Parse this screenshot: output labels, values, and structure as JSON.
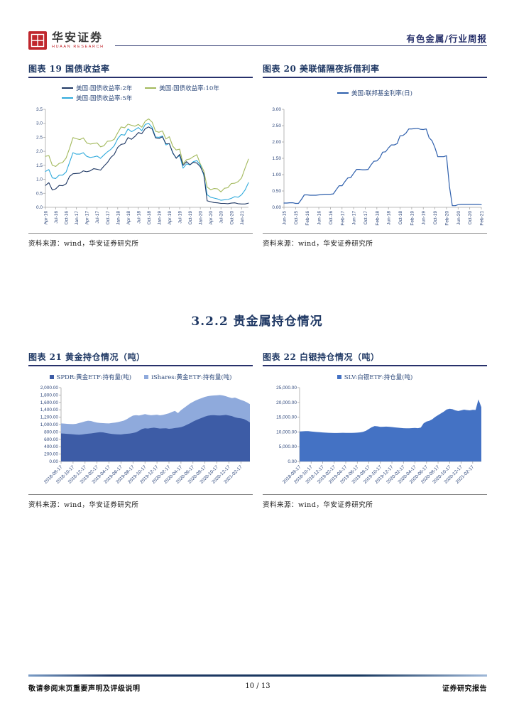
{
  "header": {
    "logo_cn": "华安证券",
    "logo_en": "HUAAN RESEARCH",
    "report_tag": "有色金属/行业周报"
  },
  "section": {
    "title": "3.2.2 贵金属持仓情况"
  },
  "footer": {
    "disclaimer": "敬请参阅末页重要声明及评级说明",
    "page": "10 / 13",
    "right": "证券研究报告"
  },
  "chart_data": [
    {
      "id": "c19",
      "label": "图表 19 国债收益率",
      "type": "line",
      "marker": "line",
      "source": "资料来源：wind，华安证券研究所",
      "ylim": [
        0,
        3.5
      ],
      "yticks": {
        "values": [
          0,
          0.5,
          1,
          1.5,
          2,
          2.5,
          3,
          3.5
        ],
        "labels": [
          "0.0",
          "0.5",
          "1.0",
          "1.5",
          "2.0",
          "2.5",
          "3.0",
          "3.5"
        ]
      },
      "xlabels": [
        "Apr-16",
        "Jul-16",
        "Oct-16",
        "Jan-17",
        "Apr-17",
        "Jul-17",
        "Oct-17",
        "Jan-18",
        "Apr-18",
        "Jul-18",
        "Oct-18",
        "Jan-19",
        "Apr-19",
        "Jul-19",
        "Oct-19",
        "Jan-20",
        "Apr-20",
        "Jul-20",
        "Oct-20",
        "Jan-21"
      ],
      "xstep": 3,
      "legend_rows": [
        [
          0,
          1
        ],
        [
          2
        ]
      ],
      "draw_order": [
        1,
        2,
        0
      ],
      "series": [
        {
          "name": "美国:国债收益率:2年",
          "color": "#1F3864",
          "values": [
            0.78,
            0.88,
            0.62,
            0.66,
            0.78,
            0.77,
            0.84,
            1.1,
            1.2,
            1.21,
            1.22,
            1.3,
            1.27,
            1.3,
            1.38,
            1.36,
            1.33,
            1.47,
            1.6,
            1.78,
            1.89,
            2.14,
            2.25,
            2.27,
            2.49,
            2.43,
            2.53,
            2.67,
            2.63,
            2.81,
            2.87,
            2.8,
            2.48,
            2.46,
            2.52,
            2.27,
            2.27,
            1.95,
            1.75,
            1.89,
            1.5,
            1.63,
            1.52,
            1.61,
            1.58,
            1.45,
            1.2,
            0.23,
            0.2,
            0.17,
            0.16,
            0.14,
            0.14,
            0.13,
            0.15,
            0.16,
            0.13,
            0.12,
            0.12,
            0.15
          ]
        },
        {
          "name": "美国:国债收益率:10年",
          "color": "#A3B95C",
          "values": [
            1.82,
            1.85,
            1.5,
            1.46,
            1.57,
            1.6,
            1.76,
            2.1,
            2.49,
            2.45,
            2.42,
            2.48,
            2.3,
            2.26,
            2.28,
            2.3,
            2.16,
            2.2,
            2.36,
            2.37,
            2.43,
            2.66,
            2.87,
            2.84,
            2.97,
            2.93,
            2.9,
            2.96,
            2.86,
            3.08,
            3.16,
            3.04,
            2.72,
            2.68,
            2.73,
            2.44,
            2.52,
            2.18,
            2.05,
            2.08,
            1.55,
            1.7,
            1.73,
            1.81,
            1.88,
            1.55,
            1.3,
            0.72,
            0.63,
            0.67,
            0.66,
            0.55,
            0.68,
            0.7,
            0.85,
            0.86,
            0.92,
            1.05,
            1.4,
            1.72
          ]
        },
        {
          "name": "美国:国债收益率:5年",
          "color": "#2FAADC",
          "values": [
            1.28,
            1.35,
            1.05,
            1.03,
            1.15,
            1.15,
            1.26,
            1.6,
            1.95,
            1.9,
            1.9,
            1.95,
            1.82,
            1.78,
            1.8,
            1.83,
            1.75,
            1.87,
            1.98,
            2.07,
            2.2,
            2.45,
            2.6,
            2.58,
            2.8,
            2.7,
            2.77,
            2.85,
            2.74,
            2.96,
            3.0,
            2.85,
            2.51,
            2.5,
            2.55,
            2.23,
            2.28,
            1.93,
            1.77,
            1.85,
            1.4,
            1.55,
            1.52,
            1.63,
            1.67,
            1.51,
            1.15,
            0.45,
            0.36,
            0.33,
            0.3,
            0.25,
            0.27,
            0.28,
            0.32,
            0.38,
            0.36,
            0.45,
            0.62,
            0.88
          ]
        }
      ]
    },
    {
      "id": "c20",
      "label": "图表 20 美联储隔夜拆借利率",
      "type": "line",
      "marker": "line",
      "source": "资料来源：wind，华安证券研究所",
      "ylim": [
        0,
        3
      ],
      "yticks": {
        "values": [
          0,
          0.5,
          1,
          1.5,
          2,
          2.5,
          3
        ],
        "labels": [
          "0.00",
          "0.50",
          "1.00",
          "1.50",
          "2.00",
          "2.50",
          "3.00"
        ]
      },
      "xlabels": [
        "Jun-15",
        "Oct-15",
        "Feb-16",
        "Jun-16",
        "Oct-16",
        "Feb-17",
        "Jun-17",
        "Oct-17",
        "Feb-18",
        "Jun-18",
        "Oct-18",
        "Feb-19",
        "Jun-19",
        "Oct-19",
        "Feb-20",
        "Jun-20",
        "Oct-20",
        "Feb-21"
      ],
      "xstep": 4,
      "legend_rows": [
        [
          0
        ]
      ],
      "series": [
        {
          "name": "美国:联邦基金利率(日)",
          "color": "#2E5FAC",
          "values": [
            0.13,
            0.13,
            0.14,
            0.14,
            0.12,
            0.12,
            0.24,
            0.38,
            0.38,
            0.37,
            0.37,
            0.37,
            0.38,
            0.39,
            0.4,
            0.4,
            0.4,
            0.41,
            0.54,
            0.66,
            0.66,
            0.79,
            0.9,
            0.91,
            1.04,
            1.16,
            1.16,
            1.15,
            1.15,
            1.16,
            1.3,
            1.41,
            1.42,
            1.51,
            1.69,
            1.7,
            1.82,
            1.91,
            1.91,
            1.95,
            2.19,
            2.2,
            2.27,
            2.4,
            2.4,
            2.41,
            2.42,
            2.39,
            2.38,
            2.4,
            2.13,
            2.04,
            1.83,
            1.55,
            1.55,
            1.55,
            1.58,
            0.65,
            0.05,
            0.05,
            0.08,
            0.09,
            0.09,
            0.09,
            0.09,
            0.09,
            0.09,
            0.09,
            0.08
          ]
        }
      ]
    },
    {
      "id": "c21",
      "label": "图表 21 黄金持仓情况（吨）",
      "type": "stacked",
      "marker": "square",
      "source": "资料来源：wind，华安证券研究所",
      "ylim": [
        0,
        2000
      ],
      "yticks": {
        "values": [
          0,
          200,
          400,
          600,
          800,
          1000,
          1200,
          1400,
          1600,
          1800,
          2000
        ],
        "labels": [
          "0.00",
          "200.00",
          "400.00",
          "600.00",
          "800.00",
          "1,000.00",
          "1,200.00",
          "1,400.00",
          "1,600.00",
          "1,800.00",
          "2,000.00"
        ]
      },
      "xlabels": [
        "2018-08-17",
        "2018-10-17",
        "2018-12-17",
        "2019-02-17",
        "2019-04-17",
        "2019-06-17",
        "2019-08-17",
        "2019-10-17",
        "2019-12-17",
        "2020-02-17",
        "2020-04-17",
        "2020-06-17",
        "2020-08-17",
        "2020-10-17",
        "2020-12-17",
        "2021-02-17"
      ],
      "xstep": 4,
      "legend_rows": [
        [
          0,
          1
        ]
      ],
      "series": [
        {
          "name": "SPDR:黄金ETF:持有量(吨)",
          "color": "#3D5CA6",
          "values": [
            760,
            755,
            748,
            742,
            735,
            728,
            724,
            730,
            742,
            752,
            760,
            772,
            782,
            795,
            788,
            772,
            758,
            746,
            738,
            732,
            730,
            742,
            750,
            758,
            772,
            790,
            830,
            878,
            900,
            893,
            905,
            916,
            903,
            892,
            896,
            900,
            884,
            892,
            906,
            916,
            930,
            955,
            995,
            1035,
            1078,
            1118,
            1152,
            1182,
            1218,
            1240,
            1252,
            1255,
            1248,
            1245,
            1252,
            1262,
            1246,
            1228,
            1198,
            1178,
            1168,
            1150,
            1108,
            1058
          ]
        },
        {
          "name": "iShares:黄金ETF:持有量(吨)",
          "color": "#8FAADC",
          "values": [
            270,
            271,
            272,
            274,
            277,
            292,
            316,
            332,
            344,
            352,
            336,
            300,
            270,
            249,
            250,
            260,
            272,
            296,
            316,
            336,
            356,
            366,
            398,
            442,
            470,
            466,
            416,
            384,
            382,
            373,
            347,
            344,
            365,
            358,
            366,
            382,
            421,
            448,
            466,
            394,
            460,
            495,
            515,
            535,
            537,
            537,
            538,
            538,
            532,
            530,
            528,
            533,
            547,
            555,
            536,
            506,
            494,
            490,
            532,
            522,
            500,
            490,
            492,
            494
          ]
        }
      ]
    },
    {
      "id": "c22",
      "label": "图表 22 白银持仓情况（吨）",
      "type": "area",
      "marker": "square",
      "source": "资料来源：wind，华安证券研究所",
      "ylim": [
        0,
        25000
      ],
      "yticks": {
        "values": [
          0,
          5000,
          10000,
          15000,
          20000,
          25000
        ],
        "labels": [
          "0.00",
          "5,000.00",
          "10,000.00",
          "15,000.00",
          "20,000.00",
          "25,000.00"
        ]
      },
      "xlabels": [
        "2018-08-17",
        "2018-10-17",
        "2018-12-17",
        "2019-02-17",
        "2019-04-17",
        "2019-06-17",
        "2019-08-17",
        "2019-10-17",
        "2019-12-17",
        "2020-02-17",
        "2020-04-17",
        "2020-06-17",
        "2020-08-17",
        "2020-10-17",
        "2020-12-17",
        "2021-02-17"
      ],
      "xstep": 4,
      "legend_rows": [
        [
          0
        ]
      ],
      "series": [
        {
          "name": "SLV:白银ETF:持仓量(吨)",
          "color": "#4472C4",
          "values": [
            10150,
            10220,
            10280,
            10260,
            10180,
            10080,
            9980,
            9900,
            9820,
            9760,
            9700,
            9660,
            9630,
            9650,
            9680,
            9700,
            9680,
            9660,
            9690,
            9720,
            9760,
            9850,
            10050,
            10400,
            11000,
            11600,
            12000,
            11900,
            11700,
            11750,
            11800,
            11750,
            11650,
            11550,
            11450,
            11350,
            11280,
            11230,
            11260,
            11300,
            11350,
            11280,
            11500,
            12900,
            13500,
            13800,
            14300,
            15100,
            15700,
            16300,
            16900,
            17600,
            17850,
            17700,
            17300,
            17100,
            17300,
            17550,
            17400,
            17300,
            17500,
            17450,
            21000,
            18400
          ]
        }
      ]
    }
  ]
}
